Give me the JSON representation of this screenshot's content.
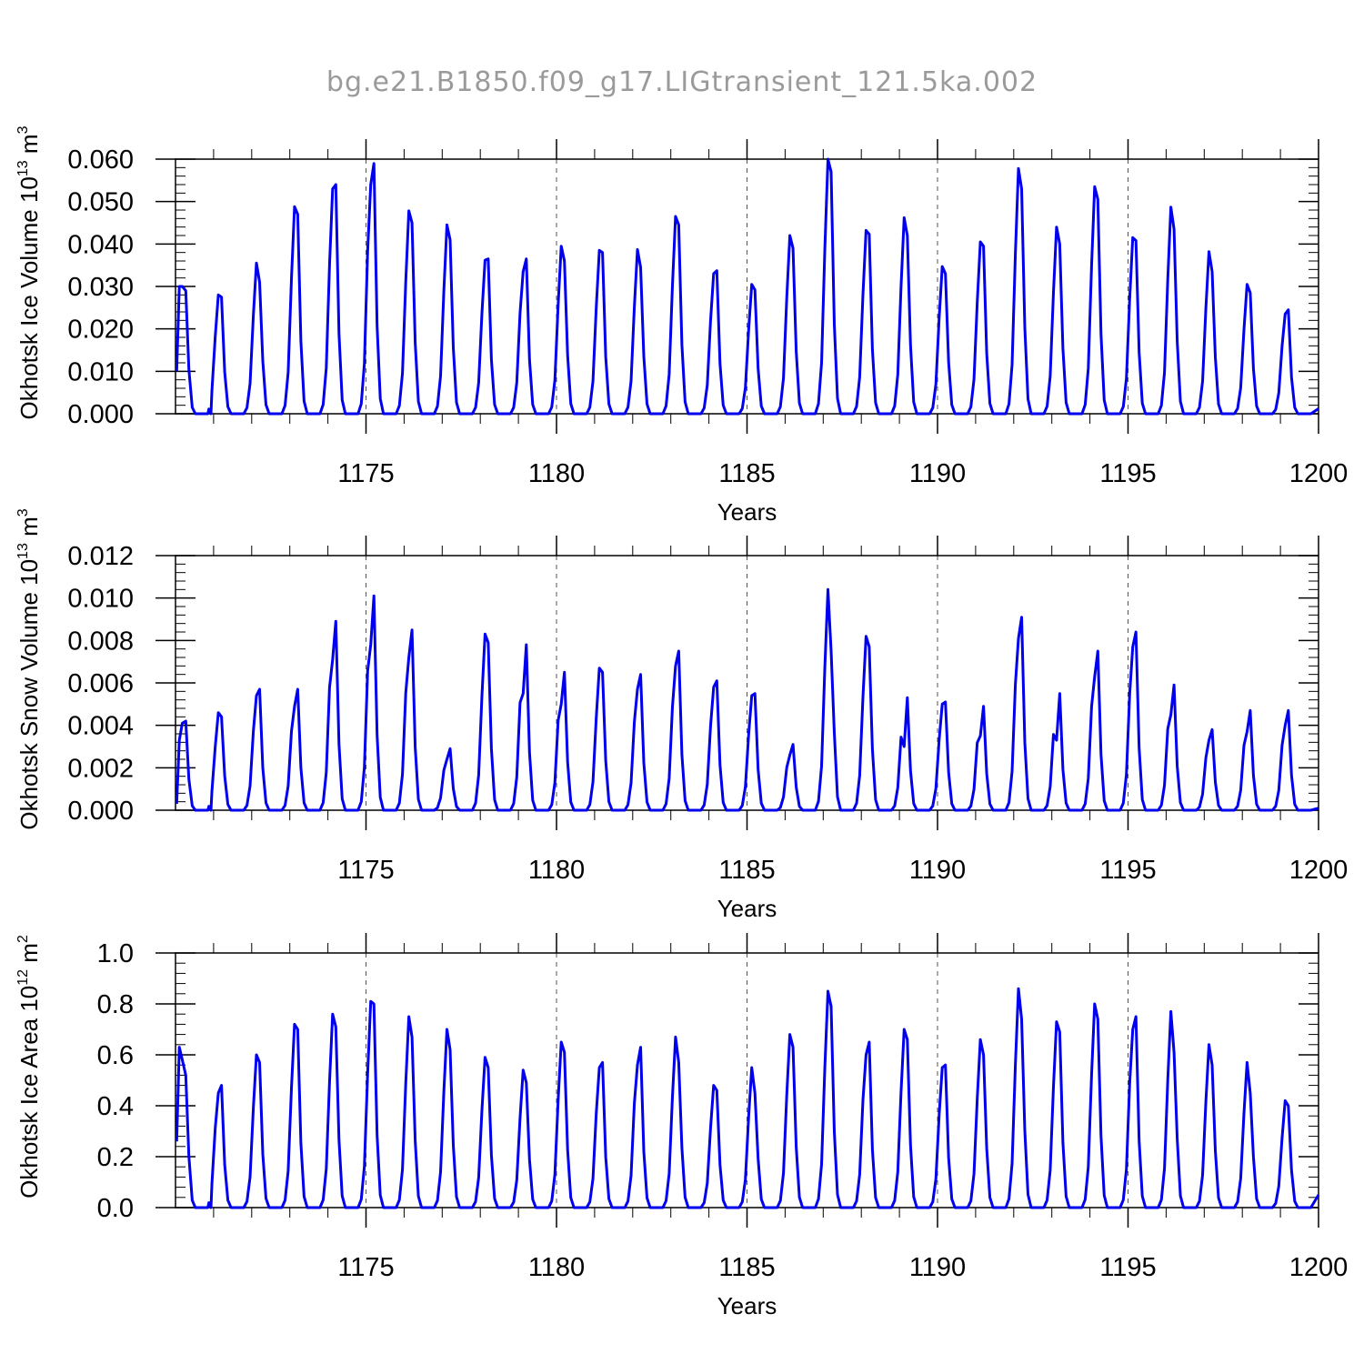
{
  "title": "bg.e21.B1850.f09_g17.LIGtransient_121.5ka.002",
  "chart_data": [
    {
      "type": "line",
      "name": "ice-volume",
      "ylabel_main": "Okhotsk Ice Volume 10",
      "ylabel_exp": "13",
      "ylabel_unit": " m",
      "ylabel_unit_exp": "3",
      "xlabel": "Years",
      "xlim": [
        1170.0,
        1200.0
      ],
      "ylim": [
        0.0,
        0.06
      ],
      "grid": "vertical dashed at labeled years",
      "xticks": [
        {
          "v": 1175,
          "label": "1175"
        },
        {
          "v": 1180,
          "label": "1180"
        },
        {
          "v": 1185,
          "label": "1185"
        },
        {
          "v": 1190,
          "label": "1190"
        },
        {
          "v": 1195,
          "label": "1195"
        },
        {
          "v": 1200,
          "label": "1200"
        }
      ],
      "yticks": [
        {
          "v": 0.0,
          "label": "0.000"
        },
        {
          "v": 0.01,
          "label": "0.010"
        },
        {
          "v": 0.02,
          "label": "0.020"
        },
        {
          "v": 0.03,
          "label": "0.030"
        },
        {
          "v": 0.04,
          "label": "0.040"
        },
        {
          "v": 0.05,
          "label": "0.050"
        },
        {
          "v": 0.06,
          "label": "0.060"
        }
      ],
      "series_color": "#0000ee",
      "yearly": [
        {
          "rise": 0.01,
          "peaks": [
            0.03,
            0.029
          ]
        },
        {
          "peaks": [
            0.028,
            0.0275
          ]
        },
        {
          "peaks": [
            0.0355,
            0.031
          ]
        },
        {
          "peaks": [
            0.0488,
            0.047
          ]
        },
        {
          "peaks": [
            0.053,
            0.054
          ]
        },
        {
          "peaks": [
            0.054,
            0.059
          ]
        },
        {
          "peaks": [
            0.0478,
            0.045
          ]
        },
        {
          "peaks": [
            0.0445,
            0.041
          ]
        },
        {
          "peaks": [
            0.0362,
            0.0365
          ]
        },
        {
          "peaks": [
            0.0335,
            0.0365
          ]
        },
        {
          "peaks": [
            0.0395,
            0.036
          ]
        },
        {
          "peaks": [
            0.0385,
            0.038
          ]
        },
        {
          "peaks": [
            0.0387,
            0.0345
          ]
        },
        {
          "peaks": [
            0.0465,
            0.0445
          ]
        },
        {
          "peaks": [
            0.033,
            0.0337
          ]
        },
        {
          "peaks": [
            0.0305,
            0.0292
          ]
        },
        {
          "peaks": [
            0.042,
            0.039
          ]
        },
        {
          "peaks": [
            0.06,
            0.057
          ]
        },
        {
          "peaks": [
            0.0432,
            0.0423
          ]
        },
        {
          "peaks": [
            0.0462,
            0.042
          ]
        },
        {
          "peaks": [
            0.0347,
            0.033
          ]
        },
        {
          "peaks": [
            0.0405,
            0.0395
          ]
        },
        {
          "peaks": [
            0.0578,
            0.053
          ]
        },
        {
          "peaks": [
            0.044,
            0.04
          ]
        },
        {
          "peaks": [
            0.0535,
            0.0505
          ]
        },
        {
          "peaks": [
            0.0415,
            0.0408
          ]
        },
        {
          "peaks": [
            0.0487,
            0.0435
          ]
        },
        {
          "peaks": [
            0.0382,
            0.0335
          ]
        },
        {
          "peaks": [
            0.0305,
            0.0285
          ]
        },
        {
          "peaks": [
            0.0235,
            0.0245
          ]
        }
      ],
      "end_value": 0.0012
    },
    {
      "type": "line",
      "name": "snow-volume",
      "ylabel_main": "Okhotsk Snow Volume 10",
      "ylabel_exp": "13",
      "ylabel_unit": " m",
      "ylabel_unit_exp": "3",
      "xlabel": "Years",
      "xlim": [
        1170.0,
        1200.0
      ],
      "ylim": [
        0.0,
        0.012
      ],
      "grid": "vertical dashed at labeled years",
      "xticks": [
        {
          "v": 1175,
          "label": "1175"
        },
        {
          "v": 1180,
          "label": "1180"
        },
        {
          "v": 1185,
          "label": "1185"
        },
        {
          "v": 1190,
          "label": "1190"
        },
        {
          "v": 1195,
          "label": "1195"
        },
        {
          "v": 1200,
          "label": "1200"
        }
      ],
      "yticks": [
        {
          "v": 0.0,
          "label": "0.000"
        },
        {
          "v": 0.002,
          "label": "0.002"
        },
        {
          "v": 0.004,
          "label": "0.004"
        },
        {
          "v": 0.006,
          "label": "0.006"
        },
        {
          "v": 0.008,
          "label": "0.008"
        },
        {
          "v": 0.01,
          "label": "0.010"
        },
        {
          "v": 0.012,
          "label": "0.012"
        }
      ],
      "series_color": "#0000ee",
      "yearly": [
        {
          "rise": 0.0003,
          "peaks": [
            0.0041,
            0.0042
          ]
        },
        {
          "peaks": [
            0.0046,
            0.0044
          ]
        },
        {
          "peaks": [
            0.0054,
            0.0057
          ]
        },
        {
          "peaks": [
            0.0049,
            0.0057
          ]
        },
        {
          "peaks": [
            0.0071,
            0.0089
          ]
        },
        {
          "peaks": [
            0.0078,
            0.0101
          ]
        },
        {
          "peaks": [
            0.0072,
            0.0085
          ]
        },
        {
          "peaks": [
            0.0024,
            0.0029
          ]
        },
        {
          "peaks": [
            0.0083,
            0.0079
          ]
        },
        {
          "peaks": [
            0.0055,
            0.0078
          ]
        },
        {
          "peaks": [
            0.005,
            0.0065
          ]
        },
        {
          "peaks": [
            0.0067,
            0.0065
          ]
        },
        {
          "peaks": [
            0.0057,
            0.0064
          ]
        },
        {
          "peaks": [
            0.0068,
            0.0075
          ]
        },
        {
          "peaks": [
            0.0058,
            0.0061
          ]
        },
        {
          "peaks": [
            0.0054,
            0.0055
          ]
        },
        {
          "peaks": [
            0.0026,
            0.0031
          ]
        },
        {
          "peaks": [
            0.0104,
            0.0075
          ]
        },
        {
          "peaks": [
            0.0082,
            0.0077
          ]
        },
        {
          "peaks": [
            0.003,
            0.0053
          ]
        },
        {
          "peaks": [
            0.005,
            0.0051
          ]
        },
        {
          "peaks": [
            0.0035,
            0.0049
          ]
        },
        {
          "peaks": [
            0.0081,
            0.0091
          ]
        },
        {
          "peaks": [
            0.0033,
            0.0055
          ]
        },
        {
          "peaks": [
            0.0063,
            0.0075
          ]
        },
        {
          "peaks": [
            0.0077,
            0.0084
          ]
        },
        {
          "peaks": [
            0.0045,
            0.0059
          ]
        },
        {
          "peaks": [
            0.0033,
            0.0038
          ]
        },
        {
          "peaks": [
            0.0037,
            0.0047
          ]
        },
        {
          "peaks": [
            0.004,
            0.0047
          ]
        }
      ],
      "end_value": 0.0001
    },
    {
      "type": "line",
      "name": "ice-area",
      "ylabel_main": "Okhotsk Ice Area 10",
      "ylabel_exp": "12",
      "ylabel_unit": " m",
      "ylabel_unit_exp": "2",
      "xlabel": "Years",
      "xlim": [
        1170.0,
        1200.0
      ],
      "ylim": [
        0.0,
        1.0
      ],
      "grid": "vertical dashed at labeled years",
      "xticks": [
        {
          "v": 1175,
          "label": "1175"
        },
        {
          "v": 1180,
          "label": "1180"
        },
        {
          "v": 1185,
          "label": "1185"
        },
        {
          "v": 1190,
          "label": "1190"
        },
        {
          "v": 1195,
          "label": "1195"
        },
        {
          "v": 1200,
          "label": "1200"
        }
      ],
      "yticks": [
        {
          "v": 0.0,
          "label": "0.0"
        },
        {
          "v": 0.2,
          "label": "0.2"
        },
        {
          "v": 0.4,
          "label": "0.4"
        },
        {
          "v": 0.6,
          "label": "0.6"
        },
        {
          "v": 0.8,
          "label": "0.8"
        },
        {
          "v": 1.0,
          "label": "1.0"
        }
      ],
      "series_color": "#0000ee",
      "yearly": [
        {
          "rise": 0.26,
          "peaks": [
            0.58,
            0.52
          ]
        },
        {
          "peaks": [
            0.45,
            0.48
          ]
        },
        {
          "peaks": [
            0.6,
            0.57
          ]
        },
        {
          "peaks": [
            0.72,
            0.7
          ]
        },
        {
          "peaks": [
            0.76,
            0.71
          ]
        },
        {
          "peaks": [
            0.81,
            0.8
          ]
        },
        {
          "peaks": [
            0.75,
            0.67
          ]
        },
        {
          "peaks": [
            0.7,
            0.62
          ]
        },
        {
          "peaks": [
            0.59,
            0.55
          ]
        },
        {
          "peaks": [
            0.54,
            0.49
          ]
        },
        {
          "peaks": [
            0.65,
            0.61
          ]
        },
        {
          "peaks": [
            0.55,
            0.57
          ]
        },
        {
          "peaks": [
            0.56,
            0.63
          ]
        },
        {
          "peaks": [
            0.67,
            0.57
          ]
        },
        {
          "peaks": [
            0.48,
            0.46
          ]
        },
        {
          "peaks": [
            0.55,
            0.45
          ]
        },
        {
          "peaks": [
            0.68,
            0.63
          ]
        },
        {
          "peaks": [
            0.85,
            0.79
          ]
        },
        {
          "peaks": [
            0.6,
            0.65
          ]
        },
        {
          "peaks": [
            0.7,
            0.66
          ]
        },
        {
          "peaks": [
            0.55,
            0.56
          ]
        },
        {
          "peaks": [
            0.66,
            0.6
          ]
        },
        {
          "peaks": [
            0.86,
            0.74
          ]
        },
        {
          "peaks": [
            0.73,
            0.69
          ]
        },
        {
          "peaks": [
            0.8,
            0.74
          ]
        },
        {
          "peaks": [
            0.7,
            0.75
          ]
        },
        {
          "peaks": [
            0.77,
            0.61
          ]
        },
        {
          "peaks": [
            0.64,
            0.56
          ]
        },
        {
          "peaks": [
            0.57,
            0.45
          ]
        },
        {
          "peaks": [
            0.42,
            0.4
          ]
        }
      ],
      "end_value": 0.05
    }
  ]
}
